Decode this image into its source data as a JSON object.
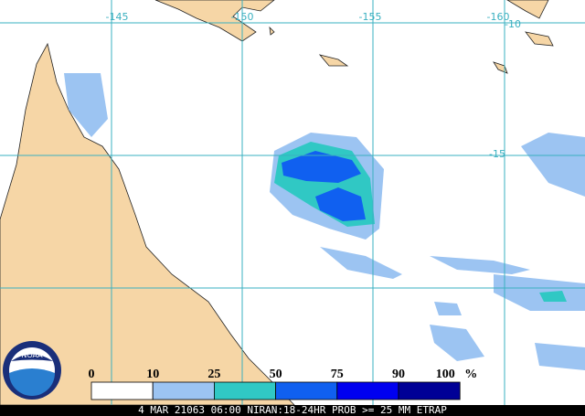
{
  "map": {
    "longitude_labels": [
      "-145",
      "-150",
      "-155",
      "-160"
    ],
    "latitude_labels": [
      "-10",
      "-15"
    ],
    "logo": "NOAA",
    "legend": {
      "labels": [
        "0",
        "10",
        "25",
        "50",
        "75",
        "90",
        "100"
      ],
      "unit": "%",
      "colors": [
        "#ffffff",
        "#9cc4f2",
        "#30c8c4",
        "#1060f0",
        "#0000f0",
        "#000096"
      ]
    },
    "footer": "4 MAR 21063 06:00 NIRAN:18-24HR PROB >= 25 MM ETRAP"
  }
}
